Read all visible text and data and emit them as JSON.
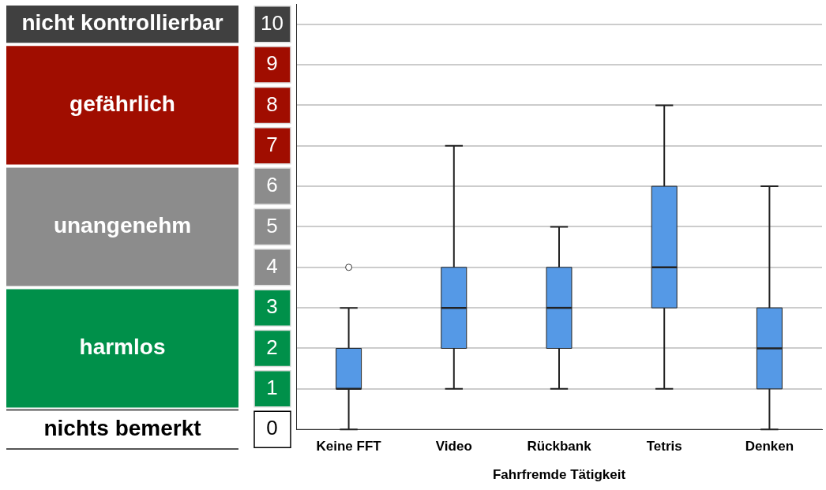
{
  "chart_data": {
    "type": "box",
    "xlabel": "Fahrfremde Tätigkeit",
    "categories": [
      "Keine FFT",
      "Video",
      "Rückbank",
      "Tetris",
      "Denken"
    ],
    "color": "#5599e6",
    "boxes": [
      {
        "low": 0,
        "q1": 1,
        "median": 1,
        "q3": 2,
        "high": 3,
        "outliers": [
          4
        ]
      },
      {
        "low": 1,
        "q1": 2,
        "median": 3,
        "q3": 4,
        "high": 7
      },
      {
        "low": 1,
        "q1": 2,
        "median": 3,
        "q3": 4,
        "high": 5
      },
      {
        "low": 1,
        "q1": 3,
        "median": 4,
        "q3": 6,
        "high": 8
      },
      {
        "low": 0,
        "q1": 1,
        "median": 2,
        "q3": 3,
        "high": 6
      }
    ],
    "ylim": [
      0,
      10.5
    ],
    "yticks": [
      0,
      1,
      2,
      3,
      4,
      5,
      6,
      7,
      8,
      9,
      10
    ],
    "grid": "y",
    "legend": false,
    "annotations": [
      "nicht kontrollierbar",
      "gefährlich",
      "unangenehm",
      "harmlos",
      "nichts bemerkt"
    ]
  }
}
